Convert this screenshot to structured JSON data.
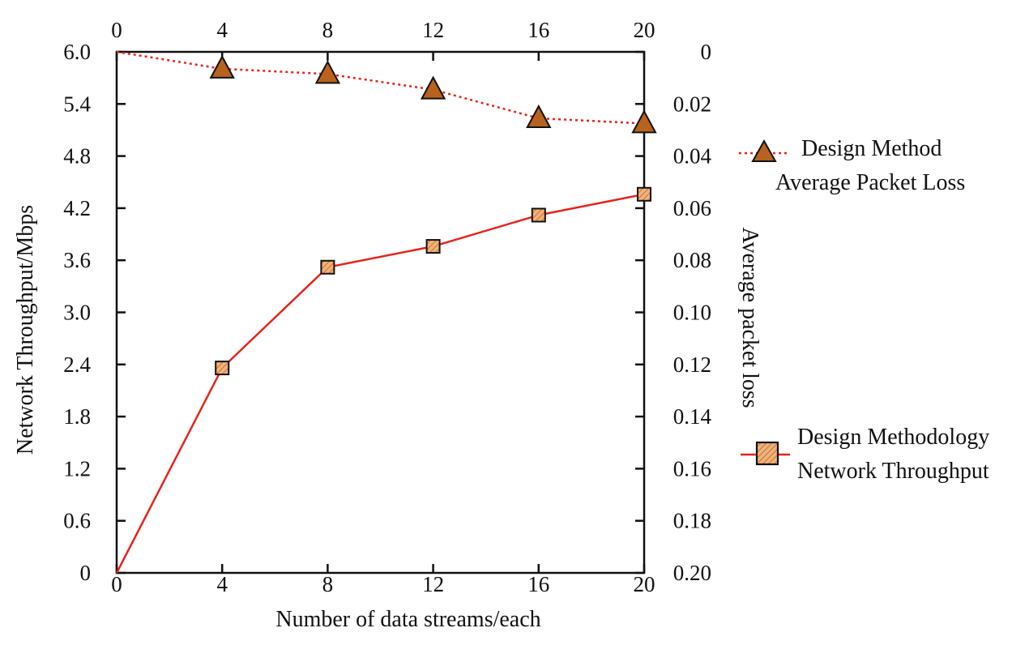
{
  "chart_data": {
    "type": "line",
    "x_bottom": {
      "label": "Number of data streams/each",
      "ticks": [
        "0",
        "4",
        "8",
        "12",
        "16",
        "20"
      ],
      "range": [
        0,
        20
      ]
    },
    "x_top": {
      "ticks": [
        "0",
        "4",
        "8",
        "12",
        "16",
        "20"
      ],
      "range": [
        0,
        20
      ]
    },
    "y_left": {
      "label": "Network Throughput/Mbps",
      "ticks": [
        "0",
        "0.6",
        "1.2",
        "1.8",
        "2.4",
        "3.0",
        "3.6",
        "4.2",
        "4.8",
        "5.4",
        "6.0"
      ],
      "range": [
        0,
        6.0
      ]
    },
    "y_right": {
      "label": "Average packet loss",
      "ticks": [
        "0",
        "0.02",
        "0.04",
        "0.06",
        "0.08",
        "0.10",
        "0.12",
        "0.14",
        "0.16",
        "0.18",
        "0.20"
      ],
      "range": [
        0,
        0.2
      ],
      "inverted": true
    },
    "series": [
      {
        "name_lines": [
          "Design Method",
          "Average Packet Loss"
        ],
        "axis": "right",
        "marker": "triangle",
        "line_style": "dotted",
        "color": "#e8231a",
        "marker_fill": "#b8621e",
        "x": [
          4,
          8,
          12,
          16,
          20
        ],
        "values": [
          0.0065,
          0.0085,
          0.0145,
          0.0255,
          0.0275
        ]
      },
      {
        "name_lines": [
          "Design Methodology",
          "Network Throughput"
        ],
        "axis": "left",
        "marker": "square",
        "line_style": "solid",
        "color": "#e8231a",
        "marker_fill": "#f2b27a",
        "x": [
          0,
          4,
          8,
          12,
          16,
          20
        ],
        "values": [
          0,
          2.36,
          3.52,
          3.76,
          4.12,
          4.36
        ]
      }
    ],
    "grid": false,
    "legend_position": "right"
  }
}
